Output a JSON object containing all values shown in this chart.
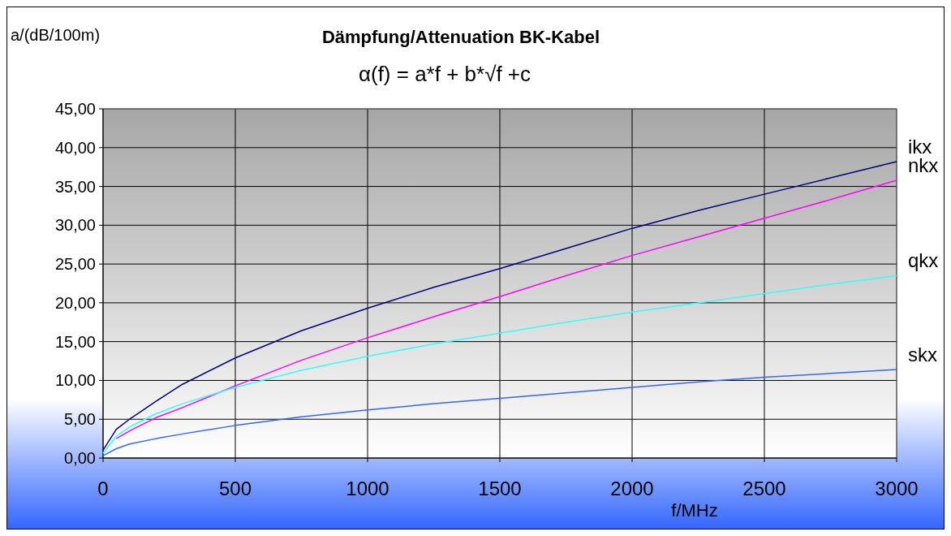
{
  "chart_data": {
    "type": "line",
    "title": "Dämpfung/Attenuation BK-Kabel",
    "subtitle": "α(f) = a*f + b*√f +c",
    "xlabel": "f/MHz",
    "ylabel": "a/(dB/100m)",
    "x": [
      0,
      50,
      100,
      200,
      300,
      500,
      750,
      1000,
      1250,
      1500,
      1750,
      2000,
      2250,
      2500,
      2750,
      3000
    ],
    "series": [
      {
        "name": "ikx",
        "color": "#000080",
        "values": [
          1,
          3.7,
          5,
          7.3,
          9.5,
          12.9,
          16.4,
          19.3,
          22,
          24.4,
          27,
          29.6,
          31.9,
          34,
          36.1,
          38.2
        ]
      },
      {
        "name": "nkx",
        "color": "#ff00ff",
        "values": [
          null,
          2.5,
          3.5,
          5.2,
          6.5,
          9.3,
          12.6,
          15.5,
          18.2,
          20.8,
          23.5,
          26.1,
          28.5,
          30.9,
          33.3,
          35.8
        ]
      },
      {
        "name": "qkx",
        "color": "#33ffff",
        "values": [
          0.6,
          2.8,
          4,
          5.7,
          7,
          9.1,
          11.3,
          13.1,
          14.7,
          16.1,
          17.5,
          18.8,
          20,
          21.2,
          22.4,
          23.5
        ]
      },
      {
        "name": "skx",
        "color": "#3366ff",
        "values": [
          0.3,
          1.2,
          1.8,
          2.5,
          3.1,
          4.2,
          5.3,
          6.2,
          7,
          7.7,
          8.4,
          9.1,
          9.8,
          10.4,
          10.9,
          11.4
        ]
      }
    ],
    "xlim": [
      0,
      3000
    ],
    "xticks": [
      0,
      500,
      1000,
      1500,
      2000,
      2500,
      3000
    ],
    "ylim": [
      0,
      45
    ],
    "yticks": [
      {
        "value": 0,
        "label": "0,00"
      },
      {
        "value": 5,
        "label": "5,00"
      },
      {
        "value": 10,
        "label": "10,00"
      },
      {
        "value": 15,
        "label": "15,00"
      },
      {
        "value": 20,
        "label": "20,00"
      },
      {
        "value": 25,
        "label": "25,00"
      },
      {
        "value": 30,
        "label": "30,00"
      },
      {
        "value": 35,
        "label": "35,00"
      },
      {
        "value": 40,
        "label": "40,00"
      },
      {
        "value": 45,
        "label": "45,00"
      }
    ],
    "grid": true,
    "legend": false,
    "marker": "none",
    "line_style": "solid"
  }
}
